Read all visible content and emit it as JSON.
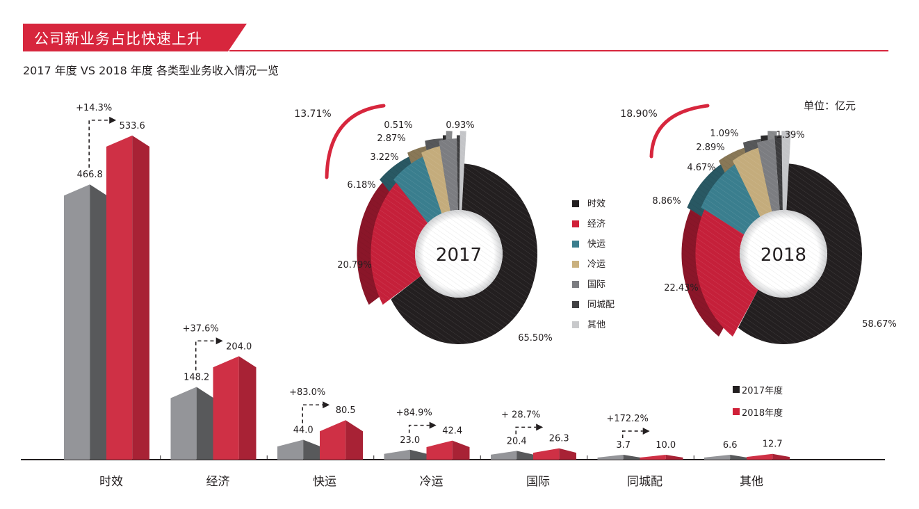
{
  "header": {
    "title": "公司新业务占比快速上升",
    "subtitle": "2017 年度 VS 2018 年度 各类型业务收入情况一览",
    "unit": "单位：亿元"
  },
  "colors": {
    "brand_red": "#d7263d",
    "bar_2017_front": "#949599",
    "bar_2017_side": "#58595b",
    "bar_2018_front": "#cf3045",
    "bar_2018_side": "#a82235",
    "axis": "#231f20"
  },
  "chart_data": [
    {
      "type": "bar",
      "title": "2017 年度 VS 2018 年度 各类型业务收入情况一览",
      "unit": "亿元",
      "categories": [
        "时效",
        "经济",
        "快运",
        "冷运",
        "国际",
        "同城配",
        "其他"
      ],
      "series": [
        {
          "name": "2017年度",
          "values": [
            466.8,
            148.2,
            44.0,
            23.0,
            20.4,
            3.7,
            6.6
          ],
          "labels": [
            "466.8",
            "148.2",
            "44.0",
            "23.0",
            "20.4",
            "3.7",
            "6.6"
          ]
        },
        {
          "name": "2018年度",
          "values": [
            533.6,
            204.0,
            80.5,
            42.4,
            26.3,
            10.0,
            12.7
          ],
          "labels": [
            "533.6",
            "204.0",
            "80.5",
            "42.4",
            "26.3",
            "10.0",
            "12.7"
          ]
        }
      ],
      "growth_labels": [
        "+14.3%",
        "+37.6%",
        "+83.0%",
        "+84.9%",
        "+ 28.7%",
        "+172.2%",
        null
      ],
      "legend": [
        "2017年度",
        "2018年度"
      ],
      "legend_position": "bottom-right"
    },
    {
      "type": "pie",
      "title": "2017",
      "categories": [
        "时效",
        "经济",
        "快运",
        "冷运",
        "国际",
        "同城配",
        "其他"
      ],
      "values": [
        65.5,
        20.79,
        6.18,
        3.22,
        2.87,
        0.51,
        0.93
      ],
      "labels": [
        "65.50%",
        "20.79%",
        "6.18%",
        "3.22%",
        "2.87%",
        "0.51%",
        "0.93%"
      ],
      "new_business_share": "13.71%",
      "colors": [
        "#231f20",
        "#c5203a",
        "#3a7e8e",
        "#c4ac7c",
        "#7c7d81",
        "#3c3c3e",
        "#c4c5c8"
      ]
    },
    {
      "type": "pie",
      "title": "2018",
      "categories": [
        "时效",
        "经济",
        "快运",
        "冷运",
        "国际",
        "同城配",
        "其他"
      ],
      "values": [
        58.67,
        22.43,
        8.86,
        4.67,
        2.89,
        1.09,
        1.39
      ],
      "labels": [
        "58.67%",
        "22.43%",
        "8.86%",
        "4.67%",
        "2.89%",
        "1.09%",
        "1.39%"
      ],
      "new_business_share": "18.90%",
      "colors": [
        "#231f20",
        "#c5203a",
        "#3a7e8e",
        "#c4ac7c",
        "#7c7d81",
        "#3c3c3e",
        "#c4c5c8"
      ]
    }
  ],
  "pie_legend": [
    {
      "label": "时效",
      "color": "#231f20"
    },
    {
      "label": "经济",
      "color": "#d02038"
    },
    {
      "label": "快运",
      "color": "#3a7e8e"
    },
    {
      "label": "冷运",
      "color": "#c9b07e"
    },
    {
      "label": "国际",
      "color": "#7c7d81"
    },
    {
      "label": "同城配",
      "color": "#414143"
    },
    {
      "label": "其他",
      "color": "#c8c9cb"
    }
  ],
  "year_legend": [
    {
      "label": "2017年度",
      "color": "#231f20"
    },
    {
      "label": "2018年度",
      "color": "#d02038"
    }
  ]
}
